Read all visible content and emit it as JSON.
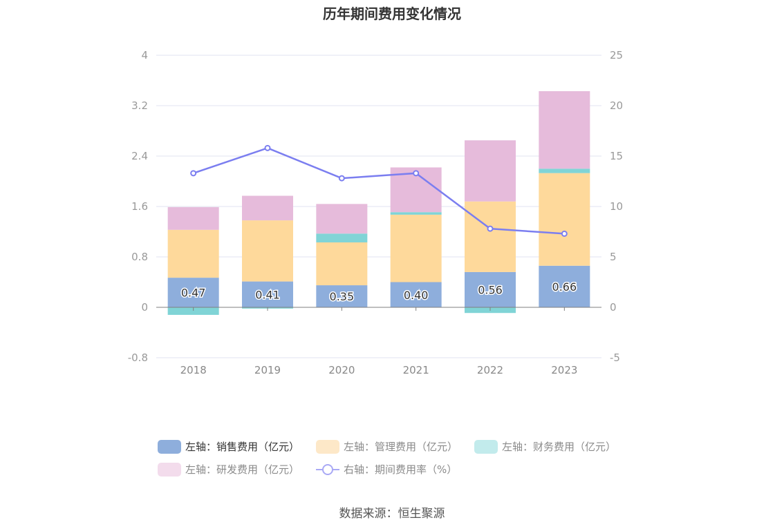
{
  "title": "历年期间费用变化情况",
  "source": "数据来源：恒生聚源",
  "colors": {
    "sales": "#8eaedc",
    "admin": "#fed99b",
    "finance": "#80d4d6",
    "rnd": "#e6bbdb",
    "rate": "#7b7ef0"
  },
  "legend": [
    {
      "label": "左轴：销售费用（亿元）",
      "swatch": "#8eaedc",
      "state": "active",
      "icon": "rounded-rect"
    },
    {
      "label": "左轴：管理费用（亿元）",
      "swatch": "#fde8c8",
      "state": "inactive",
      "icon": "rounded-rect"
    },
    {
      "label": "左轴：财务费用（亿元）",
      "swatch": "#c2ebec",
      "state": "inactive",
      "icon": "rounded-rect"
    },
    {
      "label": "左轴：研发费用（亿元）",
      "swatch": "#f3dcec",
      "state": "inactive",
      "icon": "rounded-rect"
    },
    {
      "label": "右轴：期间费用率（%）",
      "swatch": "#a9a9f5",
      "state": "inactive",
      "icon": "line-circle"
    }
  ],
  "chart_data": {
    "type": "bar",
    "stacked": true,
    "title": "历年期间费用变化情况",
    "categories": [
      "2018",
      "2019",
      "2020",
      "2021",
      "2022",
      "2023"
    ],
    "series": [
      {
        "name": "左轴：销售费用（亿元）",
        "axis": "left",
        "type": "bar",
        "values": [
          0.47,
          0.41,
          0.35,
          0.4,
          0.56,
          0.66
        ],
        "labels": [
          "0.47",
          "0.41",
          "0.35",
          "0.40",
          "0.56",
          "0.66"
        ]
      },
      {
        "name": "左轴：管理费用（亿元）",
        "axis": "left",
        "type": "bar",
        "values": [
          0.76,
          0.97,
          0.68,
          1.07,
          1.12,
          1.47
        ]
      },
      {
        "name": "左轴：财务费用（亿元）",
        "axis": "left",
        "type": "bar",
        "values": [
          -0.12,
          -0.02,
          0.14,
          0.04,
          -0.09,
          0.07
        ]
      },
      {
        "name": "左轴：研发费用（亿元）",
        "axis": "left",
        "type": "bar",
        "values": [
          0.36,
          0.39,
          0.47,
          0.71,
          0.97,
          1.23
        ]
      },
      {
        "name": "右轴：期间费用率（%）",
        "axis": "right",
        "type": "line",
        "values": [
          13.3,
          15.8,
          12.8,
          13.3,
          7.8,
          7.3
        ]
      }
    ],
    "left_axis": {
      "min": -0.8,
      "max": 4,
      "ticks": [
        "-0.8",
        "0",
        "0.8",
        "1.6",
        "2.4",
        "3.2",
        "4"
      ]
    },
    "right_axis": {
      "min": -5,
      "max": 25,
      "ticks": [
        "-5",
        "0",
        "5",
        "10",
        "15",
        "20",
        "25"
      ]
    },
    "grid": true,
    "legend_position": "bottom"
  }
}
